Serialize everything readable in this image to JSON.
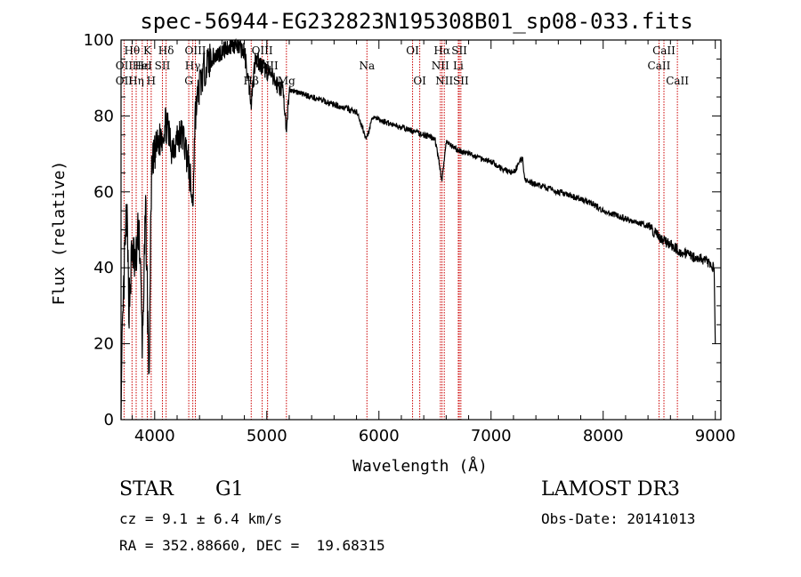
{
  "chart_data": {
    "type": "line",
    "title": "spec-56944-EG232823N195308B01_sp08-033.fits",
    "xlabel": "Wavelength (Å)",
    "ylabel": "Flux (relative)",
    "xlim": [
      3700,
      9050
    ],
    "ylim": [
      0,
      100
    ],
    "xticks": [
      4000,
      5000,
      6000,
      7000,
      8000,
      9000
    ],
    "yticks": [
      0,
      20,
      40,
      60,
      80,
      100
    ],
    "line_color": "#cc0000",
    "spectrum_keypoints": {
      "x": [
        3700,
        3710,
        3730,
        3750,
        3770,
        3800,
        3830,
        3860,
        3890,
        3920,
        3950,
        3970,
        4000,
        4050,
        4100,
        4150,
        4200,
        4250,
        4300,
        4340,
        4360,
        4400,
        4450,
        4500,
        4550,
        4600,
        4650,
        4700,
        4750,
        4800,
        4861,
        4900,
        4950,
        5000,
        5050,
        5100,
        5150,
        5175,
        5200,
        5300,
        5400,
        5500,
        5600,
        5700,
        5800,
        5890,
        5950,
        6000,
        6100,
        6200,
        6300,
        6400,
        6500,
        6563,
        6600,
        6700,
        6800,
        6900,
        7000,
        7100,
        7200,
        7280,
        7300,
        7400,
        7500,
        7600,
        7700,
        7800,
        7900,
        8000,
        8100,
        8200,
        8300,
        8400,
        8500,
        8600,
        8700,
        8800,
        8900,
        8960,
        8990,
        9000
      ],
      "y": [
        0,
        18,
        40,
        55,
        30,
        45,
        40,
        52,
        20,
        55,
        10,
        62,
        70,
        74,
        78,
        72,
        74,
        75,
        68,
        56,
        80,
        88,
        93,
        95,
        96,
        97,
        98,
        99,
        98,
        97,
        84,
        96,
        93,
        92,
        90,
        88,
        87,
        74,
        87,
        86,
        85,
        84,
        83,
        82,
        81,
        74,
        80,
        79,
        78,
        77,
        76,
        75,
        74,
        63,
        73,
        71,
        70,
        69,
        68,
        66,
        65,
        69,
        63,
        62,
        61,
        60,
        59,
        58,
        57,
        55,
        54,
        53,
        52,
        51,
        48,
        46,
        44,
        43,
        42,
        41,
        40,
        20
      ]
    },
    "lines": [
      {
        "label": "Hθ",
        "wavelength": 3798,
        "row": 0
      },
      {
        "label": "OII",
        "wavelength": 3727,
        "row": 1
      },
      {
        "label": "OII",
        "wavelength": 3727,
        "row": 2
      },
      {
        "label": "K",
        "wavelength": 3934,
        "row": 0
      },
      {
        "label": "Hε",
        "wavelength": 3889,
        "row": 1
      },
      {
        "label": "Hη",
        "wavelength": 3835,
        "row": 2
      },
      {
        "label": "HeI",
        "wavelength": 3889,
        "row": 1
      },
      {
        "label": "SII",
        "wavelength": 4069,
        "row": 1
      },
      {
        "label": "H",
        "wavelength": 3969,
        "row": 2
      },
      {
        "label": "Hδ",
        "wavelength": 4102,
        "row": 0
      },
      {
        "label": "OIII",
        "wavelength": 4363,
        "row": 0
      },
      {
        "label": "Hγ",
        "wavelength": 4340,
        "row": 1
      },
      {
        "label": "G",
        "wavelength": 4304,
        "row": 2
      },
      {
        "label": "Hβ",
        "wavelength": 4861,
        "row": 2
      },
      {
        "label": "OIII",
        "wavelength": 4959,
        "row": 0
      },
      {
        "label": "OIII",
        "wavelength": 5007,
        "row": 1
      },
      {
        "label": "Mg",
        "wavelength": 5175,
        "row": 2
      },
      {
        "label": "Na",
        "wavelength": 5893,
        "row": 1
      },
      {
        "label": "OI",
        "wavelength": 6300,
        "row": 0
      },
      {
        "label": "OI",
        "wavelength": 6364,
        "row": 2
      },
      {
        "label": "Hα",
        "wavelength": 6563,
        "row": 0
      },
      {
        "label": "NII",
        "wavelength": 6548,
        "row": 1
      },
      {
        "label": "NII",
        "wavelength": 6583,
        "row": 2
      },
      {
        "label": "SII",
        "wavelength": 6717,
        "row": 0
      },
      {
        "label": "Li",
        "wavelength": 6708,
        "row": 1
      },
      {
        "label": "SII",
        "wavelength": 6731,
        "row": 2
      },
      {
        "label": "CaII",
        "wavelength": 8542,
        "row": 0
      },
      {
        "label": "CaII",
        "wavelength": 8498,
        "row": 1
      },
      {
        "label": "CaII",
        "wavelength": 8662,
        "row": 2
      }
    ]
  },
  "info": {
    "object_class": "STAR",
    "subclass": "G1",
    "survey": "LAMOST DR3",
    "cz": "cz = 9.1 ± 6.4 km/s",
    "obs_date": "Obs-Date: 20141013",
    "coords": "RA = 352.88660, DEC =  19.68315"
  }
}
